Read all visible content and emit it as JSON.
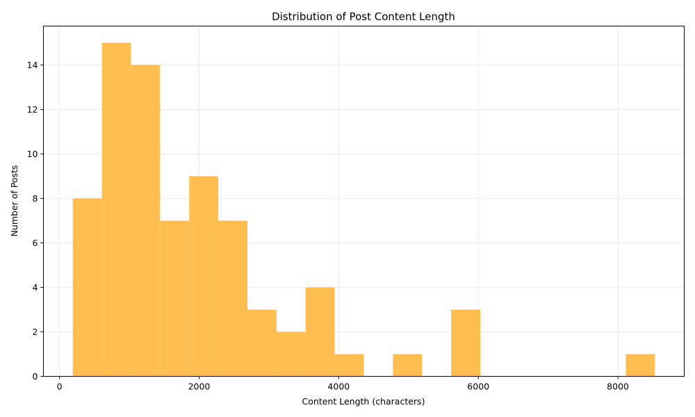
{
  "chart_data": {
    "type": "bar",
    "title": "Distribution of Post Content Length",
    "xlabel": "Content Length (characters)",
    "ylabel": "Number of Posts",
    "xlim": [
      -230,
      8950
    ],
    "ylim": [
      0,
      15.75
    ],
    "xticks": [
      0,
      2000,
      4000,
      6000,
      8000
    ],
    "yticks": [
      0,
      2,
      4,
      6,
      8,
      10,
      12,
      14
    ],
    "grid": true,
    "bin_edges": [
      190,
      607,
      1024,
      1441,
      1858,
      2275,
      2692,
      3109,
      3526,
      3943,
      4360,
      4777,
      5194,
      5611,
      6028,
      6445,
      6862,
      7279,
      7696,
      8113,
      8530
    ],
    "counts": [
      8,
      15,
      14,
      7,
      9,
      7,
      3,
      2,
      4,
      1,
      0,
      1,
      0,
      3,
      0,
      0,
      0,
      0,
      0,
      1
    ],
    "bar_color": "#FFBE4F",
    "grid_color": "#e6e6e6"
  }
}
